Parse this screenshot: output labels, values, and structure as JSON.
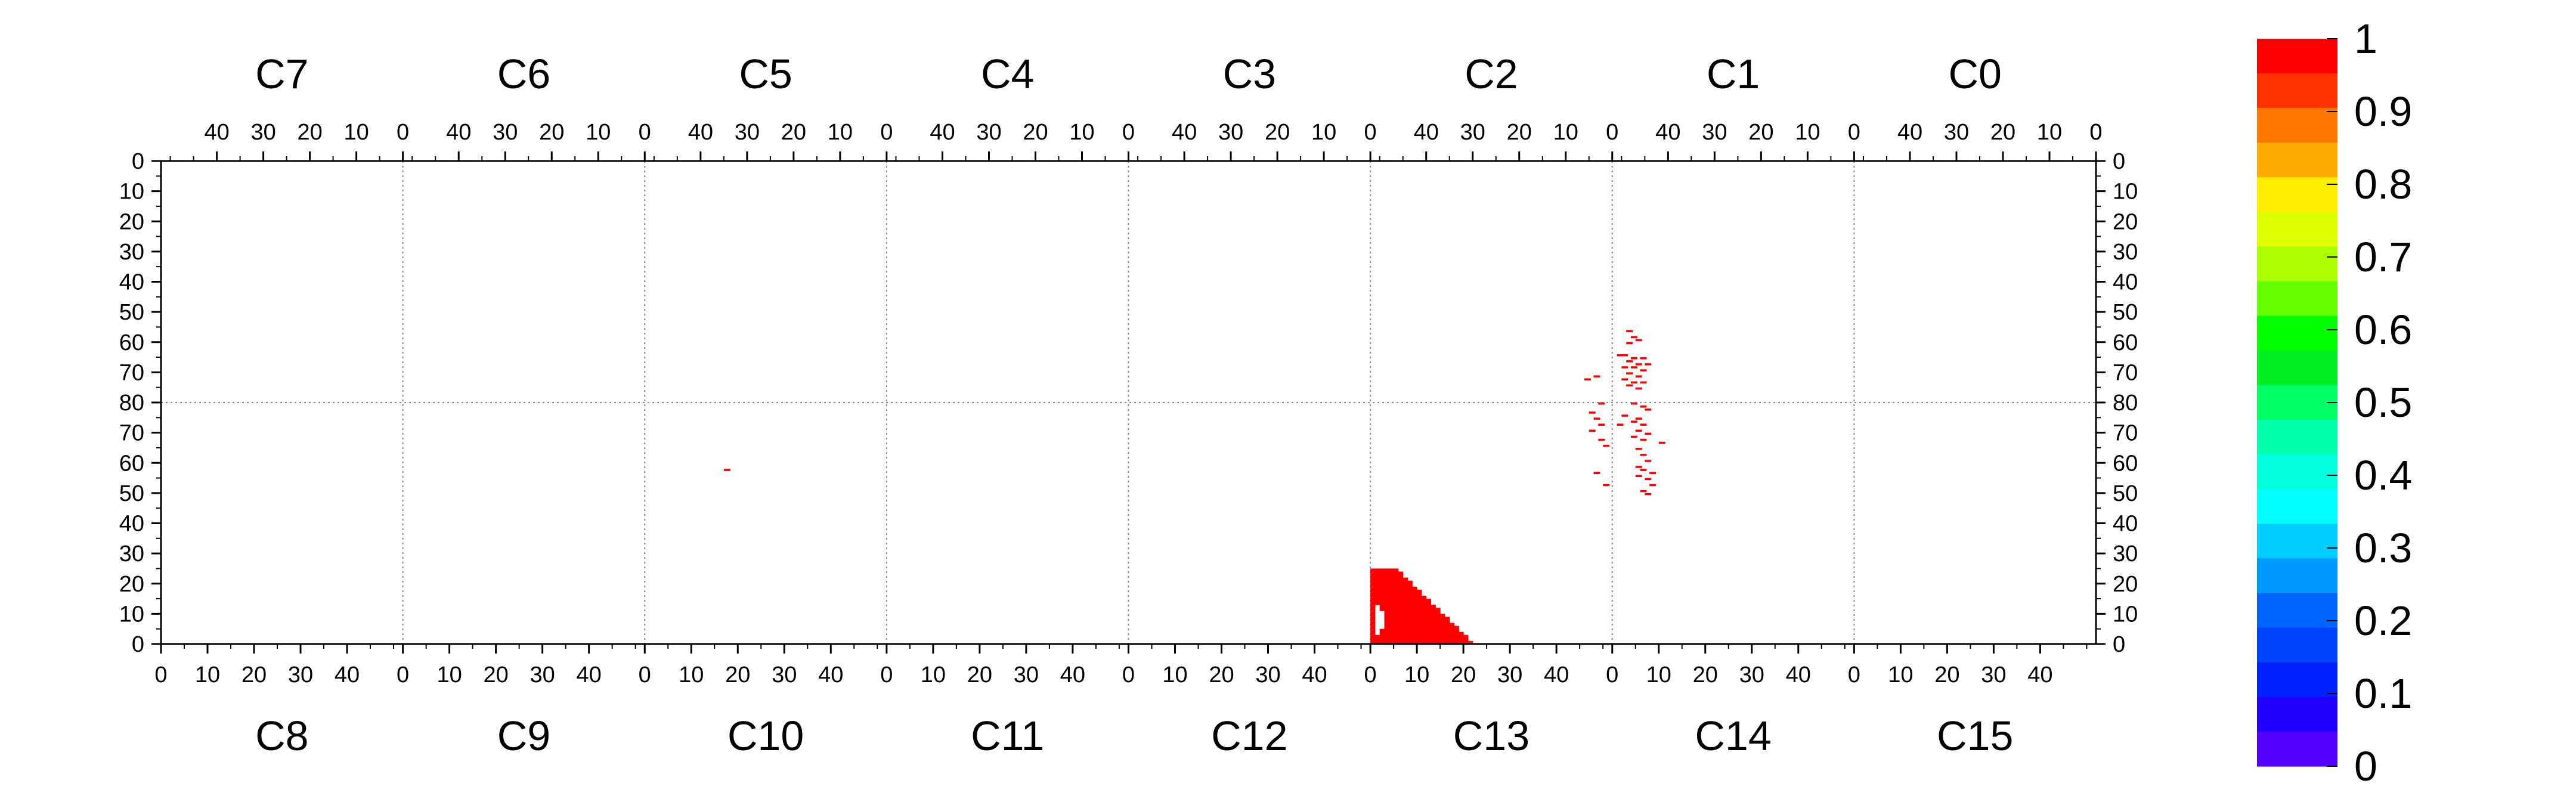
{
  "chart_data": {
    "type": "heatmap",
    "top_chips": [
      "C7",
      "C6",
      "C5",
      "C4",
      "C3",
      "C2",
      "C1",
      "C0"
    ],
    "bottom_chips": [
      "C8",
      "C9",
      "C10",
      "C11",
      "C12",
      "C13",
      "C14",
      "C15"
    ],
    "top_x_tick_labels": [
      "40",
      "30",
      "20",
      "10",
      "0"
    ],
    "bottom_x_tick_labels": [
      "0",
      "10",
      "20",
      "30",
      "40"
    ],
    "x_range_per_chip": [
      0,
      52
    ],
    "y_tick_labels_upper": [
      "0",
      "10",
      "20",
      "30",
      "40",
      "50",
      "60",
      "70",
      "80"
    ],
    "y_tick_labels_lower": [
      "70",
      "60",
      "50",
      "40",
      "30",
      "20",
      "10",
      "0"
    ],
    "y_range_per_half": [
      0,
      80
    ],
    "grid": true,
    "colorbar": {
      "ticks": [
        "1",
        "0.9",
        "0.8",
        "0.7",
        "0.6",
        "0.5",
        "0.4",
        "0.3",
        "0.2",
        "0.1",
        "0"
      ],
      "range": [
        0,
        1
      ],
      "colors": [
        "#ff0000",
        "#ff3300",
        "#ff7700",
        "#ffaa00",
        "#ffee00",
        "#ddff00",
        "#aaff00",
        "#66ff00",
        "#00ff00",
        "#00ee22",
        "#00ff66",
        "#00ffaa",
        "#00ffdd",
        "#00ffff",
        "#00ccff",
        "#0099ff",
        "#0066ff",
        "#0044ff",
        "#0022ff",
        "#2200ff",
        "#5500ff"
      ]
    },
    "hit_value": 1,
    "hit_color": "#ff0000",
    "hit_pixels": [
      {
        "chip": "C1",
        "col": 48,
        "row": 56
      },
      {
        "chip": "C1",
        "col": 47,
        "row": 58
      },
      {
        "chip": "C1",
        "col": 46,
        "row": 59
      },
      {
        "chip": "C1",
        "col": 48,
        "row": 60
      },
      {
        "chip": "C1",
        "col": 50,
        "row": 64
      },
      {
        "chip": "C1",
        "col": 49,
        "row": 64
      },
      {
        "chip": "C1",
        "col": 47,
        "row": 65
      },
      {
        "chip": "C1",
        "col": 45,
        "row": 65
      },
      {
        "chip": "C1",
        "col": 48,
        "row": 66
      },
      {
        "chip": "C1",
        "col": 46,
        "row": 67
      },
      {
        "chip": "C1",
        "col": 44,
        "row": 67
      },
      {
        "chip": "C1",
        "col": 49,
        "row": 68
      },
      {
        "chip": "C1",
        "col": 47,
        "row": 68
      },
      {
        "chip": "C1",
        "col": 45,
        "row": 69
      },
      {
        "chip": "C1",
        "col": 48,
        "row": 70
      },
      {
        "chip": "C1",
        "col": 46,
        "row": 71
      },
      {
        "chip": "C1",
        "col": 49,
        "row": 72
      },
      {
        "chip": "C1",
        "col": 47,
        "row": 73
      },
      {
        "chip": "C1",
        "col": 45,
        "row": 73
      },
      {
        "chip": "C1",
        "col": 48,
        "row": 74
      },
      {
        "chip": "C1",
        "col": 46,
        "row": 75
      },
      {
        "chip": "C2",
        "col": 5,
        "row": 72
      },
      {
        "chip": "C2",
        "col": 3,
        "row": 71
      },
      {
        "chip": "C14",
        "col": 4,
        "row": 79
      },
      {
        "chip": "C14",
        "col": 6,
        "row": 78
      },
      {
        "chip": "C14",
        "col": 7,
        "row": 77
      },
      {
        "chip": "C14",
        "col": 2,
        "row": 75
      },
      {
        "chip": "C14",
        "col": 5,
        "row": 74
      },
      {
        "chip": "C14",
        "col": 4,
        "row": 73
      },
      {
        "chip": "C14",
        "col": 1,
        "row": 72
      },
      {
        "chip": "C14",
        "col": 6,
        "row": 72
      },
      {
        "chip": "C14",
        "col": 5,
        "row": 70
      },
      {
        "chip": "C14",
        "col": 7,
        "row": 69
      },
      {
        "chip": "C14",
        "col": 4,
        "row": 68
      },
      {
        "chip": "C14",
        "col": 6,
        "row": 67
      },
      {
        "chip": "C14",
        "col": 10,
        "row": 66
      },
      {
        "chip": "C14",
        "col": 5,
        "row": 64
      },
      {
        "chip": "C14",
        "col": 6,
        "row": 62
      },
      {
        "chip": "C14",
        "col": 7,
        "row": 60
      },
      {
        "chip": "C14",
        "col": 5,
        "row": 58
      },
      {
        "chip": "C14",
        "col": 6,
        "row": 57
      },
      {
        "chip": "C14",
        "col": 8,
        "row": 56
      },
      {
        "chip": "C14",
        "col": 5,
        "row": 55
      },
      {
        "chip": "C14",
        "col": 7,
        "row": 54
      },
      {
        "chip": "C14",
        "col": 8,
        "row": 52
      },
      {
        "chip": "C14",
        "col": 6,
        "row": 50
      },
      {
        "chip": "C14",
        "col": 7,
        "row": 49
      },
      {
        "chip": "C13",
        "col": 49,
        "row": 79
      },
      {
        "chip": "C13",
        "col": 47,
        "row": 76
      },
      {
        "chip": "C13",
        "col": 48,
        "row": 74
      },
      {
        "chip": "C13",
        "col": 49,
        "row": 72
      },
      {
        "chip": "C13",
        "col": 47,
        "row": 70
      },
      {
        "chip": "C13",
        "col": 49,
        "row": 67
      },
      {
        "chip": "C13",
        "col": 50,
        "row": 65
      },
      {
        "chip": "C13",
        "col": 48,
        "row": 56
      },
      {
        "chip": "C13",
        "col": 50,
        "row": 52
      },
      {
        "chip": "C10",
        "col": 17,
        "row": 57
      }
    ],
    "hit_region": {
      "chip": "C13",
      "cols": [
        0,
        21
      ],
      "rows": [
        0,
        24
      ]
    }
  }
}
